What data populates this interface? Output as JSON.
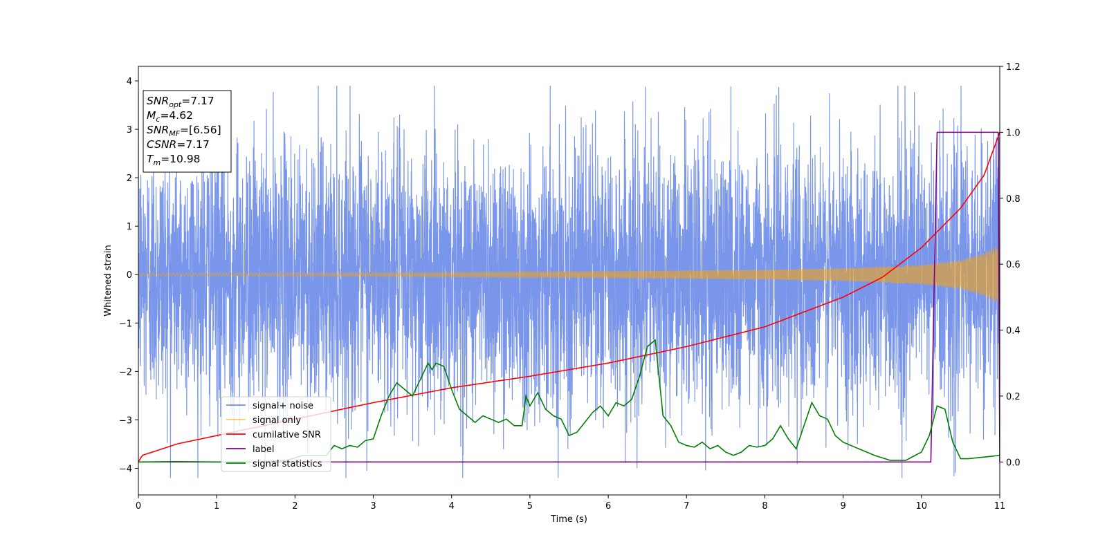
{
  "chart_data": {
    "type": "line",
    "xlabel": "Time (s)",
    "ylabel": "Whitened strain",
    "xlim": [
      0,
      11
    ],
    "ylim": [
      -4.55,
      4.3
    ],
    "y2lim": [
      -0.1,
      1.2
    ],
    "x_ticks": [
      0,
      1,
      2,
      3,
      4,
      5,
      6,
      7,
      8,
      9,
      10,
      11
    ],
    "y_ticks": [
      -4,
      -3,
      -2,
      -1,
      0,
      1,
      2,
      3,
      4
    ],
    "y2_ticks": [
      0.0,
      0.2,
      0.4,
      0.6,
      0.8,
      1.0,
      1.2
    ],
    "grid": false,
    "legend_position": "lower-left",
    "annotation": {
      "lines": [
        {
          "var": "SNR",
          "sub": "opt",
          "value": "=7.17"
        },
        {
          "var": "M",
          "sub": "c",
          "value": "=4.62"
        },
        {
          "var": "SNR",
          "sub": "MF",
          "value": "=[6.56]"
        },
        {
          "var": "CSNR",
          "sub": "",
          "value": "=7.17"
        },
        {
          "var": "T",
          "sub": "m",
          "value": "=10.98"
        }
      ]
    },
    "series": [
      {
        "name": "signal+ noise",
        "axis": "left",
        "color": "#4169e1",
        "style": "dense-noise",
        "typical_band": [
          -2.3,
          2.3
        ],
        "max_excursion": [
          -4.2,
          3.9
        ]
      },
      {
        "name": "signal only",
        "axis": "left",
        "color": "#ffa500",
        "style": "chirp",
        "envelope": {
          "x": [
            0,
            2,
            4,
            6,
            8,
            9,
            10,
            10.5,
            10.8,
            10.98
          ],
          "amp": [
            0.03,
            0.04,
            0.05,
            0.07,
            0.1,
            0.13,
            0.2,
            0.3,
            0.45,
            0.6
          ]
        }
      },
      {
        "name": "cumilative SNR",
        "axis": "right",
        "color": "#ff0000",
        "style": "line",
        "x": [
          0,
          0.05,
          0.5,
          1,
          2,
          3,
          4,
          5,
          6,
          7,
          8,
          9,
          9.5,
          10,
          10.5,
          10.8,
          11
        ],
        "y": [
          0.0,
          0.02,
          0.055,
          0.08,
          0.13,
          0.18,
          0.225,
          0.26,
          0.3,
          0.35,
          0.41,
          0.5,
          0.56,
          0.65,
          0.77,
          0.87,
          1.0
        ]
      },
      {
        "name": "label",
        "axis": "right",
        "color": "#800080",
        "style": "line",
        "x": [
          0,
          10.12,
          10.2,
          10.98,
          11.0
        ],
        "y": [
          0,
          0,
          1,
          1,
          0
        ]
      },
      {
        "name": "signal statistics",
        "axis": "right",
        "color": "#008000",
        "style": "line",
        "x": [
          0,
          0.5,
          1,
          1.5,
          1.9,
          2.1,
          2.4,
          2.5,
          2.6,
          2.7,
          2.8,
          2.9,
          3.0,
          3.1,
          3.2,
          3.3,
          3.4,
          3.5,
          3.6,
          3.7,
          3.75,
          3.8,
          3.9,
          4.0,
          4.1,
          4.2,
          4.3,
          4.4,
          4.5,
          4.6,
          4.7,
          4.8,
          4.9,
          4.95,
          5.0,
          5.1,
          5.2,
          5.3,
          5.4,
          5.5,
          5.6,
          5.7,
          5.8,
          5.9,
          6.0,
          6.1,
          6.2,
          6.3,
          6.4,
          6.5,
          6.6,
          6.7,
          6.8,
          6.9,
          7.0,
          7.1,
          7.2,
          7.3,
          7.4,
          7.5,
          7.6,
          7.7,
          7.8,
          7.9,
          8.0,
          8.1,
          8.2,
          8.3,
          8.4,
          8.5,
          8.6,
          8.7,
          8.8,
          8.9,
          9.0,
          9.2,
          9.4,
          9.6,
          9.8,
          10.0,
          10.1,
          10.2,
          10.3,
          10.4,
          10.5,
          10.6,
          10.8,
          11.0
        ],
        "y": [
          0.0,
          0.001,
          0.0,
          0.0,
          0.005,
          0.02,
          0.02,
          0.05,
          0.04,
          0.05,
          0.045,
          0.065,
          0.07,
          0.14,
          0.2,
          0.24,
          0.22,
          0.2,
          0.25,
          0.3,
          0.28,
          0.3,
          0.29,
          0.22,
          0.16,
          0.14,
          0.12,
          0.14,
          0.13,
          0.12,
          0.13,
          0.11,
          0.11,
          0.2,
          0.17,
          0.21,
          0.16,
          0.14,
          0.13,
          0.08,
          0.09,
          0.12,
          0.15,
          0.17,
          0.14,
          0.18,
          0.17,
          0.19,
          0.26,
          0.35,
          0.37,
          0.14,
          0.11,
          0.06,
          0.05,
          0.045,
          0.06,
          0.04,
          0.05,
          0.03,
          0.02,
          0.03,
          0.05,
          0.045,
          0.05,
          0.07,
          0.11,
          0.07,
          0.04,
          0.11,
          0.18,
          0.14,
          0.13,
          0.08,
          0.06,
          0.04,
          0.02,
          0.005,
          0.005,
          0.03,
          0.08,
          0.17,
          0.16,
          0.06,
          0.01,
          0.01,
          0.015,
          0.02
        ]
      }
    ]
  }
}
